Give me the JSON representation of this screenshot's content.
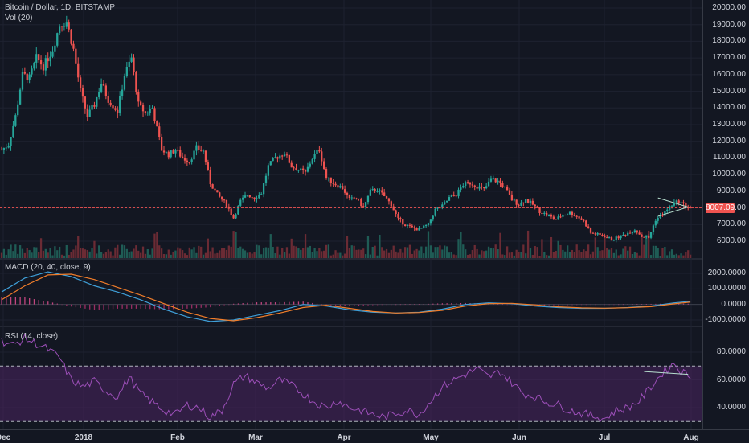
{
  "header": {
    "symbol": "Bitcoin / Dollar, 1D, BITSTAMP",
    "vol": "Vol (20)",
    "macd": "MACD (20, 40, close, 9)",
    "rsi": "RSI (14, close)"
  },
  "current_price": "8007.09",
  "colors": {
    "bg": "#131722",
    "up": "#26a69a",
    "down": "#ef5350",
    "grid": "#1e2230",
    "macd": "#3f9fd8",
    "signal": "#f07d2a",
    "rsi": "#9c4fb8",
    "rsi_band": "#4a2560",
    "price_line": "#ef5350"
  },
  "chart_data": [
    {
      "type": "candlestick",
      "title": "Bitcoin / Dollar, 1D, BITSTAMP",
      "y_ticks": [
        "20000.00",
        "19000.00",
        "18000.00",
        "17000.00",
        "16000.00",
        "15000.00",
        "14000.00",
        "13000.00",
        "12000.00",
        "11000.00",
        "10000.00",
        "9000.00",
        "8000.00",
        "7000.00",
        "6000.00"
      ],
      "x_ticks": [
        "Dec",
        "2018",
        "Feb",
        "Mar",
        "Apr",
        "May",
        "Jun",
        "Jul",
        "Aug"
      ],
      "ylim": [
        5000,
        20500
      ],
      "close_path": [
        [
          0,
          11500
        ],
        [
          3,
          11800
        ],
        [
          6,
          13500
        ],
        [
          9,
          16000
        ],
        [
          12,
          15800
        ],
        [
          15,
          17000
        ],
        [
          18,
          16500
        ],
        [
          22,
          17500
        ],
        [
          25,
          19000
        ],
        [
          28,
          19200
        ],
        [
          31,
          17500
        ],
        [
          34,
          15000
        ],
        [
          37,
          13500
        ],
        [
          40,
          14200
        ],
        [
          43,
          15500
        ],
        [
          46,
          14500
        ],
        [
          50,
          13800
        ],
        [
          53,
          16000
        ],
        [
          56,
          17000
        ],
        [
          59,
          14200
        ],
        [
          62,
          13700
        ],
        [
          65,
          14000
        ],
        [
          69,
          11500
        ],
        [
          72,
          11200
        ],
        [
          75,
          11500
        ],
        [
          78,
          11000
        ],
        [
          81,
          10800
        ],
        [
          84,
          11600
        ],
        [
          87,
          11400
        ],
        [
          90,
          9500
        ],
        [
          93,
          8800
        ],
        [
          97,
          8200
        ],
        [
          100,
          7400
        ],
        [
          103,
          8400
        ],
        [
          106,
          8800
        ],
        [
          109,
          8600
        ],
        [
          112,
          8900
        ],
        [
          115,
          10500
        ],
        [
          118,
          11000
        ],
        [
          122,
          11300
        ],
        [
          125,
          10500
        ],
        [
          128,
          10300
        ],
        [
          131,
          10100
        ],
        [
          134,
          11000
        ],
        [
          137,
          11500
        ],
        [
          140,
          9800
        ],
        [
          143,
          9500
        ],
        [
          147,
          9200
        ],
        [
          150,
          8500
        ],
        [
          153,
          8600
        ],
        [
          156,
          8000
        ],
        [
          159,
          9000
        ],
        [
          162,
          9100
        ],
        [
          165,
          8700
        ],
        [
          168,
          8200
        ],
        [
          171,
          7300
        ],
        [
          174,
          7000
        ],
        [
          177,
          6800
        ],
        [
          180,
          6700
        ],
        [
          184,
          7000
        ],
        [
          187,
          7900
        ],
        [
          190,
          8100
        ],
        [
          193,
          8600
        ],
        [
          196,
          8800
        ],
        [
          199,
          9400
        ],
        [
          202,
          9500
        ],
        [
          205,
          9300
        ],
        [
          208,
          9100
        ],
        [
          211,
          9700
        ],
        [
          214,
          9600
        ],
        [
          217,
          9200
        ],
        [
          220,
          8500
        ],
        [
          223,
          8200
        ],
        [
          226,
          8500
        ],
        [
          229,
          8200
        ],
        [
          232,
          7800
        ],
        [
          236,
          7500
        ],
        [
          239,
          7300
        ],
        [
          242,
          7600
        ],
        [
          245,
          7700
        ],
        [
          248,
          7500
        ],
        [
          251,
          7200
        ],
        [
          254,
          6500
        ],
        [
          257,
          6400
        ],
        [
          260,
          6300
        ],
        [
          263,
          6100
        ],
        [
          267,
          6300
        ],
        [
          270,
          6500
        ],
        [
          273,
          6700
        ],
        [
          276,
          6300
        ],
        [
          279,
          6200
        ],
        [
          282,
          7300
        ],
        [
          285,
          7600
        ],
        [
          289,
          8200
        ],
        [
          292,
          8400
        ],
        [
          295,
          8100
        ],
        [
          297,
          8007
        ]
      ],
      "current_price_line": 8007.09
    },
    {
      "type": "bar",
      "title": "Vol (20)"
    },
    {
      "type": "line",
      "title": "MACD (20, 40, close, 9)",
      "y_ticks": [
        "2000.0000",
        "1000.0000",
        "0.0000",
        "-1000.0000"
      ],
      "ylim": [
        -1200,
        2300
      ],
      "series": [
        {
          "points": [
            [
              0,
              800
            ],
            [
              10,
              1700
            ],
            [
              20,
              2100
            ],
            [
              30,
              1800
            ],
            [
              40,
              1200
            ],
            [
              50,
              800
            ],
            [
              60,
              300
            ],
            [
              70,
              -300
            ],
            [
              80,
              -800
            ],
            [
              90,
              -1100
            ],
            [
              100,
              -1000
            ],
            [
              110,
              -700
            ],
            [
              120,
              -400
            ],
            [
              130,
              0
            ],
            [
              140,
              -100
            ],
            [
              150,
              -350
            ],
            [
              160,
              -500
            ],
            [
              170,
              -550
            ],
            [
              180,
              -500
            ],
            [
              190,
              -300
            ],
            [
              200,
              0
            ],
            [
              210,
              100
            ],
            [
              220,
              50
            ],
            [
              230,
              -100
            ],
            [
              240,
              -200
            ],
            [
              250,
              -250
            ],
            [
              260,
              -250
            ],
            [
              270,
              -200
            ],
            [
              280,
              -100
            ],
            [
              290,
              100
            ],
            [
              297,
              200
            ]
          ]
        },
        {
          "points": [
            [
              0,
              300
            ],
            [
              10,
              1200
            ],
            [
              20,
              1900
            ],
            [
              30,
              1950
            ],
            [
              40,
              1600
            ],
            [
              50,
              1100
            ],
            [
              60,
              600
            ],
            [
              70,
              50
            ],
            [
              80,
              -500
            ],
            [
              90,
              -900
            ],
            [
              100,
              -1050
            ],
            [
              110,
              -850
            ],
            [
              120,
              -550
            ],
            [
              130,
              -200
            ],
            [
              140,
              -50
            ],
            [
              150,
              -250
            ],
            [
              160,
              -450
            ],
            [
              170,
              -550
            ],
            [
              180,
              -520
            ],
            [
              190,
              -380
            ],
            [
              200,
              -100
            ],
            [
              210,
              50
            ],
            [
              220,
              70
            ],
            [
              230,
              -30
            ],
            [
              240,
              -150
            ],
            [
              250,
              -220
            ],
            [
              260,
              -240
            ],
            [
              270,
              -210
            ],
            [
              280,
              -140
            ],
            [
              290,
              40
            ],
            [
              297,
              150
            ]
          ]
        }
      ]
    },
    {
      "type": "line",
      "title": "RSI (14, close)",
      "y_ticks": [
        "80.0000",
        "60.0000",
        "40.0000"
      ],
      "ylim": [
        25,
        92
      ],
      "bands": [
        30,
        70
      ],
      "series": [
        {
          "points": [
            [
              0,
              88
            ],
            [
              5,
              85
            ],
            [
              10,
              90
            ],
            [
              15,
              86
            ],
            [
              20,
              82
            ],
            [
              25,
              76
            ],
            [
              30,
              60
            ],
            [
              35,
              55
            ],
            [
              40,
              59
            ],
            [
              45,
              52
            ],
            [
              50,
              48
            ],
            [
              55,
              62
            ],
            [
              60,
              50
            ],
            [
              65,
              44
            ],
            [
              70,
              38
            ],
            [
              75,
              35
            ],
            [
              80,
              42
            ],
            [
              85,
              40
            ],
            [
              90,
              33
            ],
            [
              95,
              38
            ],
            [
              100,
              57
            ],
            [
              105,
              63
            ],
            [
              110,
              58
            ],
            [
              115,
              54
            ],
            [
              120,
              60
            ],
            [
              125,
              56
            ],
            [
              130,
              50
            ],
            [
              135,
              44
            ],
            [
              140,
              40
            ],
            [
              145,
              45
            ],
            [
              150,
              40
            ],
            [
              155,
              38
            ],
            [
              160,
              35
            ],
            [
              165,
              33
            ],
            [
              170,
              36
            ],
            [
              175,
              38
            ],
            [
              180,
              35
            ],
            [
              185,
              45
            ],
            [
              190,
              55
            ],
            [
              195,
              60
            ],
            [
              200,
              64
            ],
            [
              205,
              68
            ],
            [
              210,
              62
            ],
            [
              215,
              66
            ],
            [
              220,
              58
            ],
            [
              225,
              50
            ],
            [
              230,
              48
            ],
            [
              235,
              44
            ],
            [
              240,
              42
            ],
            [
              245,
              38
            ],
            [
              250,
              36
            ],
            [
              255,
              34
            ],
            [
              260,
              32
            ],
            [
              265,
              38
            ],
            [
              270,
              40
            ],
            [
              275,
              45
            ],
            [
              280,
              55
            ],
            [
              285,
              65
            ],
            [
              290,
              72
            ],
            [
              293,
              66
            ],
            [
              297,
              63
            ]
          ]
        }
      ]
    }
  ]
}
